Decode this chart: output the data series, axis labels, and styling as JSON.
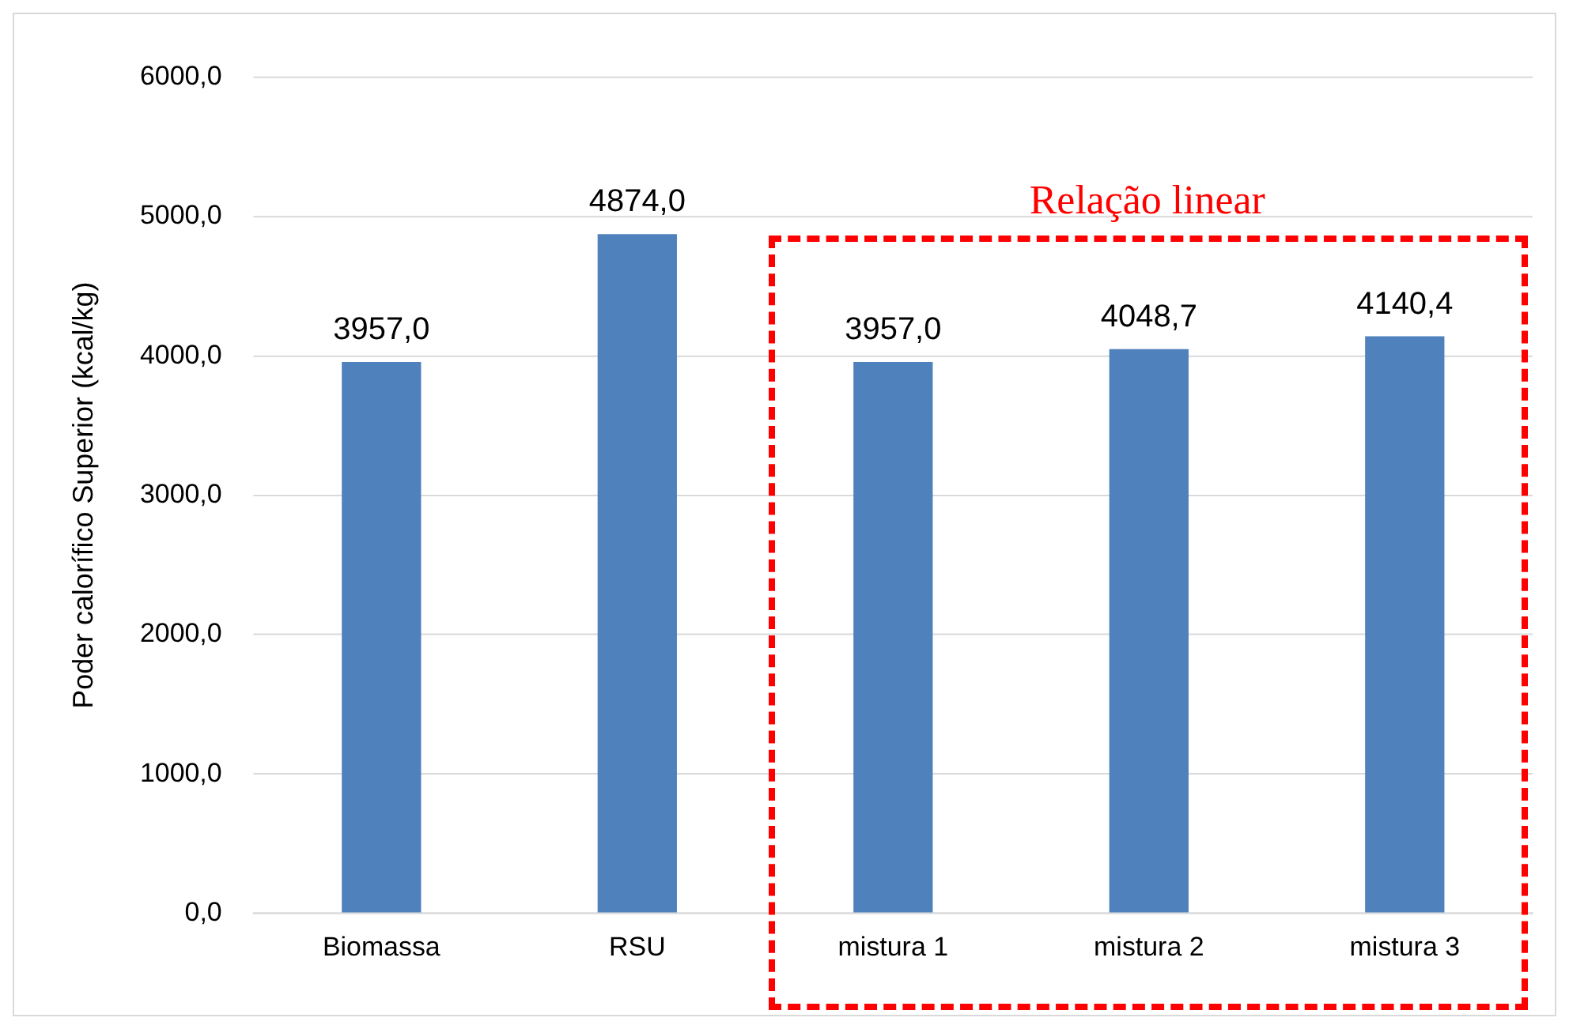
{
  "chart_data": {
    "type": "bar",
    "ylabel": "Poder calorífico Superior (kcal/kg)",
    "categories": [
      "Biomassa",
      "RSU",
      "mistura 1",
      "mistura 2",
      "mistura 3"
    ],
    "values": [
      3957.0,
      4874.0,
      3957.0,
      4048.7,
      4140.4
    ],
    "value_labels": [
      "3957,0",
      "4874,0",
      "3957,0",
      "4048,7",
      "4140,4"
    ],
    "color": "#4f81bd",
    "ylim": [
      0,
      6000
    ],
    "yticks": [
      {
        "value": 0,
        "label": "0,0"
      },
      {
        "value": 1000,
        "label": "1000,0"
      },
      {
        "value": 2000,
        "label": "2000,0"
      },
      {
        "value": 3000,
        "label": "3000,0"
      },
      {
        "value": 4000,
        "label": "4000,0"
      },
      {
        "value": 5000,
        "label": "5000,0"
      },
      {
        "value": 6000,
        "label": "6000,0"
      }
    ],
    "grid": "y",
    "legend": false,
    "annotations": [
      "Relação linear"
    ]
  }
}
